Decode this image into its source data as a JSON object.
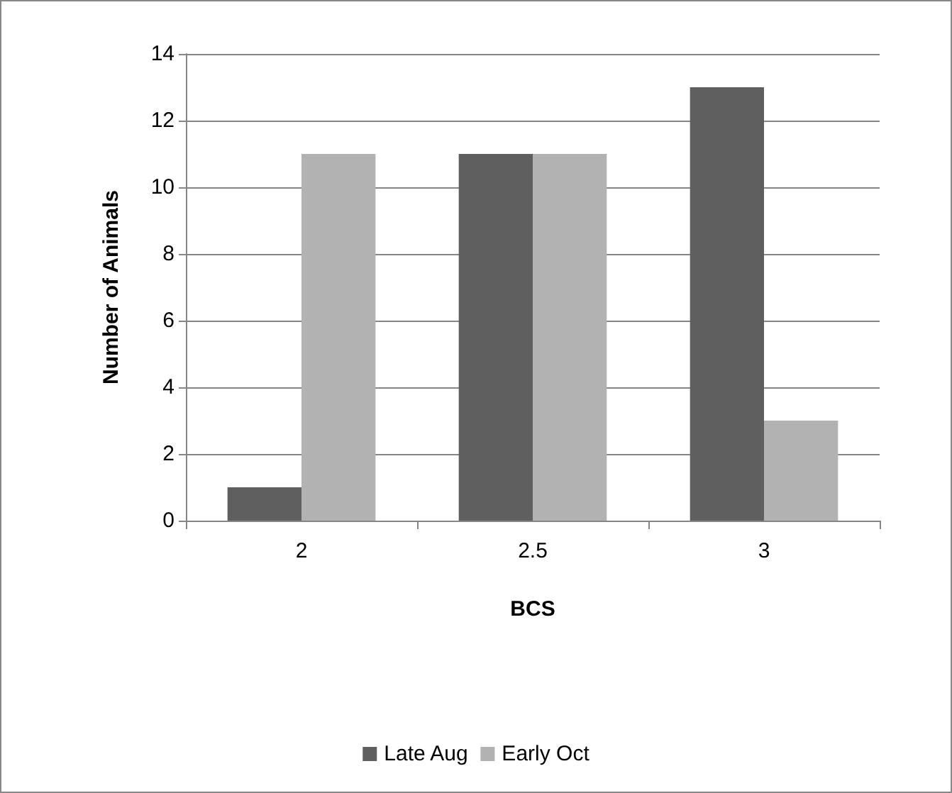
{
  "chart_data": {
    "type": "bar",
    "categories": [
      "2",
      "2.5",
      "3"
    ],
    "xlabel": "BCS",
    "ylabel": "Number of Animals",
    "series": [
      {
        "name": "Late Aug",
        "color": "#5f5f5f",
        "values": [
          1,
          11,
          13
        ]
      },
      {
        "name": "Early Oct",
        "color": "#b2b2b2",
        "values": [
          11,
          11,
          3
        ]
      }
    ],
    "ylim": [
      0,
      14
    ],
    "yticks": [
      0,
      2,
      4,
      6,
      8,
      10,
      12,
      14
    ],
    "grid": "y",
    "legend": "bottom"
  }
}
